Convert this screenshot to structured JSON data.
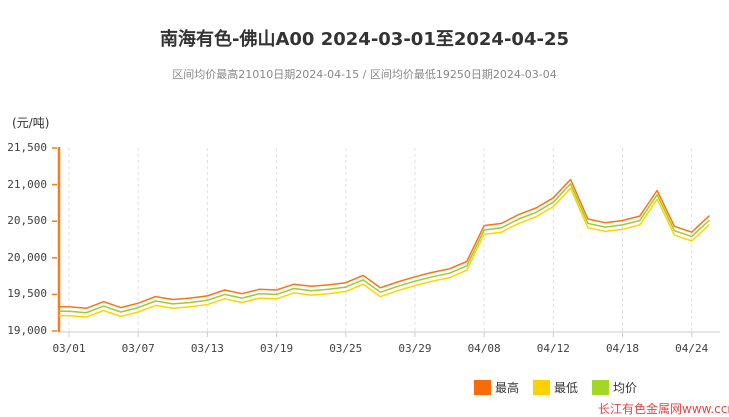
{
  "header": {
    "title": "南海有色-佛山A00 2024-03-01至2024-04-25",
    "subtitle": "区间均价最高21010日期2024-04-15 / 区间均价最低19250日期2024-03-04"
  },
  "chart_data": {
    "type": "line",
    "title": "南海有色-佛山A00 2024-03-01至2024-04-25",
    "subtitle": "区间均价最高21010日期2024-04-15 / 区间均价最低19250日期2024-03-04",
    "unit_label": "(元/吨)",
    "ylabel": "元/吨",
    "ylim": [
      19000,
      21500
    ],
    "y_ticks": [
      19000,
      19500,
      20000,
      20500,
      21000,
      21500
    ],
    "y_tick_labels": [
      "19,000",
      "19,500",
      "20,000",
      "20,500",
      "21,000",
      "21,500"
    ],
    "grid": "vertical-dashed",
    "legend_position": "bottom",
    "x": [
      "03/01",
      "03/04",
      "03/05",
      "03/06",
      "03/07",
      "03/08",
      "03/11",
      "03/12",
      "03/13",
      "03/14",
      "03/15",
      "03/18",
      "03/19",
      "03/20",
      "03/21",
      "03/22",
      "03/25",
      "03/26",
      "03/27",
      "03/28",
      "03/29",
      "04/01",
      "04/02",
      "04/03",
      "04/08",
      "04/09",
      "04/10",
      "04/11",
      "04/12",
      "04/15",
      "04/16",
      "04/17",
      "04/18",
      "04/19",
      "04/22",
      "04/23",
      "04/24",
      "04/25"
    ],
    "x_tick_indices": [
      0,
      4,
      8,
      12,
      16,
      20,
      24,
      28,
      32,
      36
    ],
    "x_tick_labels": [
      "03/01",
      "03/07",
      "03/13",
      "03/19",
      "03/25",
      "03/29",
      "04/08",
      "04/12",
      "04/18",
      "04/24"
    ],
    "series": [
      {
        "key": "high",
        "name": "最高",
        "color": "#f97412",
        "values": [
          19330,
          19310,
          19400,
          19320,
          19380,
          19470,
          19430,
          19450,
          19480,
          19560,
          19510,
          19570,
          19560,
          19640,
          19610,
          19630,
          19660,
          19760,
          19590,
          19670,
          19740,
          19800,
          19850,
          19950,
          20440,
          20470,
          20590,
          20680,
          20820,
          21070,
          20530,
          20480,
          20510,
          20570,
          20920,
          20430,
          20350,
          20570
        ]
      },
      {
        "key": "low",
        "name": "最低",
        "color": "#ffd300",
        "values": [
          19210,
          19190,
          19280,
          19200,
          19260,
          19350,
          19310,
          19330,
          19360,
          19440,
          19390,
          19450,
          19440,
          19520,
          19490,
          19510,
          19540,
          19640,
          19470,
          19550,
          19620,
          19680,
          19730,
          19830,
          20320,
          20350,
          20470,
          20560,
          20700,
          20950,
          20410,
          20360,
          20390,
          20450,
          20800,
          20310,
          20230,
          20450
        ]
      },
      {
        "key": "avg",
        "name": "均价",
        "color": "#9ecb2d",
        "values": [
          19270,
          19250,
          19340,
          19260,
          19320,
          19410,
          19370,
          19390,
          19420,
          19500,
          19450,
          19510,
          19500,
          19580,
          19550,
          19570,
          19600,
          19700,
          19530,
          19610,
          19680,
          19740,
          19790,
          19890,
          20380,
          20410,
          20530,
          20620,
          20760,
          21010,
          20470,
          20420,
          20450,
          20510,
          20860,
          20370,
          20290,
          20510
        ]
      }
    ],
    "annotations": {
      "max_avg": {
        "value": 21010,
        "date": "2024-04-15"
      },
      "min_avg": {
        "value": 19250,
        "date": "2024-03-04"
      }
    }
  },
  "legend": [
    {
      "key": "high",
      "label": "最高",
      "color": "#f96b06"
    },
    {
      "key": "low",
      "label": "最低",
      "color": "#fdd000"
    },
    {
      "key": "avg",
      "label": "均价",
      "color": "#a2d628"
    }
  ],
  "watermark": {
    "text": "长江有色金属网www.ccmn.cn",
    "color": "#e54545"
  },
  "colors": {
    "y_axis": "#fa7a1e",
    "x_axis": "#cccccc",
    "grid": "#e0e0e0",
    "title_text": "#333333",
    "subtitle_text": "#888888",
    "tick_text": "#404040"
  }
}
